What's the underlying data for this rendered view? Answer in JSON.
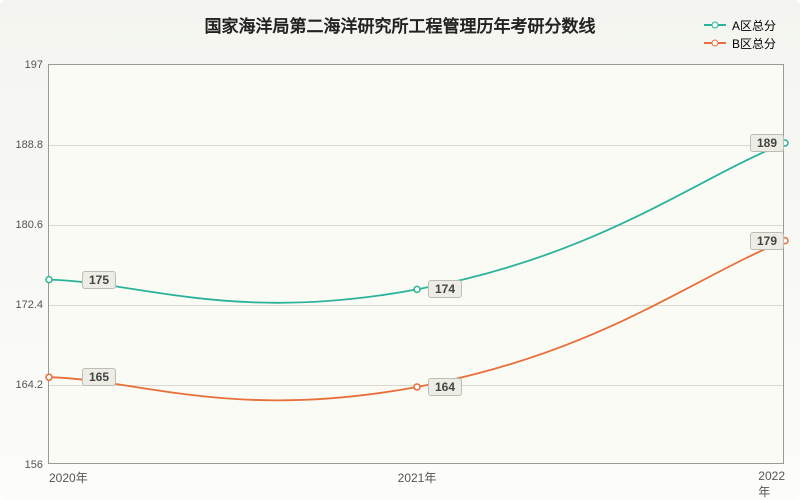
{
  "chart": {
    "type": "line",
    "title": "国家海洋局第二海洋研究所工程管理历年考研分数线",
    "title_fontsize": 17,
    "background_gradient": [
      "#f4f5f0",
      "#fcfcf8"
    ],
    "plot_background": "#fbfbf5",
    "plot_border_color": "#999999",
    "grid_color": "#d9d9d2",
    "categories": [
      "2020年",
      "2021年",
      "2022年"
    ],
    "ylim": [
      156,
      197
    ],
    "yticks": [
      156,
      164.2,
      172.4,
      180.6,
      188.8,
      197
    ],
    "line_width": 1.8,
    "series": [
      {
        "name": "A区总分",
        "color": "#2bb39a",
        "values": [
          175,
          174,
          189
        ],
        "label_values": [
          "175",
          "174",
          "189"
        ]
      },
      {
        "name": "B区总分",
        "color": "#e86e3a",
        "values": [
          165,
          164,
          179
        ],
        "label_values": [
          "165",
          "164",
          "179"
        ]
      }
    ],
    "legend": {
      "position": "top-right",
      "fontsize": 12
    },
    "label_style": {
      "bg": "#edede6",
      "border": "#bdbdb6",
      "fontsize": 12
    }
  }
}
